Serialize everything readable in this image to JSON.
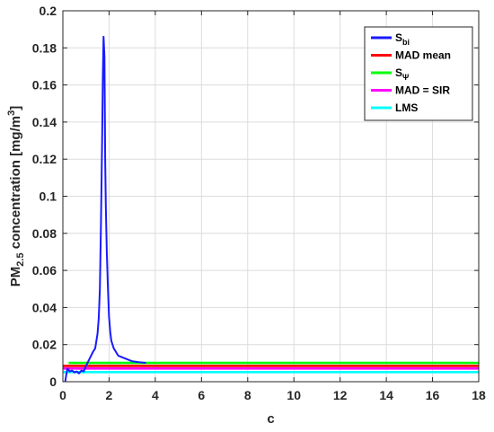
{
  "chart_data": {
    "type": "line",
    "xlabel": "c",
    "ylabel": {
      "prefix": "PM",
      "sub": "2.5",
      "middle": " concentration [mg/m",
      "sup": "3",
      "suffix": "]"
    },
    "xlim": [
      0,
      18
    ],
    "ylim": [
      0,
      0.2
    ],
    "x_ticks": [
      0,
      2,
      4,
      6,
      8,
      10,
      12,
      14,
      16,
      18
    ],
    "y_ticks": [
      0,
      0.02,
      0.04,
      0.06,
      0.08,
      0.1,
      0.12,
      0.14,
      0.16,
      0.18,
      0.2
    ],
    "grid": true,
    "legend_position": "top-right",
    "series": [
      {
        "name": "S",
        "name_sub": "bi",
        "color": "#1a1aff",
        "x": [
          0.1,
          0.15,
          0.2,
          0.3,
          0.4,
          0.5,
          0.6,
          0.7,
          0.8,
          0.9,
          1.0,
          1.1,
          1.2,
          1.3,
          1.4,
          1.5,
          1.55,
          1.6,
          1.65,
          1.7,
          1.73,
          1.76,
          1.8,
          1.83,
          1.86,
          1.9,
          1.95,
          2.0,
          2.05,
          2.1,
          2.2,
          2.3,
          2.4,
          2.6,
          2.8,
          3.0,
          3.3,
          3.6
        ],
        "y": [
          0.0,
          0.004,
          0.007,
          0.0055,
          0.006,
          0.005,
          0.0055,
          0.0045,
          0.006,
          0.0055,
          0.0085,
          0.011,
          0.0135,
          0.016,
          0.018,
          0.026,
          0.034,
          0.05,
          0.085,
          0.13,
          0.165,
          0.186,
          0.175,
          0.12,
          0.095,
          0.07,
          0.05,
          0.035,
          0.027,
          0.022,
          0.018,
          0.016,
          0.014,
          0.013,
          0.012,
          0.011,
          0.0105,
          0.0101
        ]
      },
      {
        "name": "MAD mean",
        "color": "#ff0000",
        "x": [
          0,
          18
        ],
        "y": [
          0.0085,
          0.0085
        ]
      },
      {
        "name": "S",
        "name_sub": "Ψ",
        "color": "#00ff00",
        "x": [
          0.25,
          18
        ],
        "y": [
          0.0101,
          0.0101
        ]
      },
      {
        "name": "MAD = SIR",
        "color": "#ff00ff",
        "x": [
          0,
          18
        ],
        "y": [
          0.0071,
          0.0071
        ]
      },
      {
        "name": "LMS",
        "color": "#00ffff",
        "x": [
          0,
          18
        ],
        "y": [
          0.0052,
          0.0052
        ]
      }
    ]
  }
}
